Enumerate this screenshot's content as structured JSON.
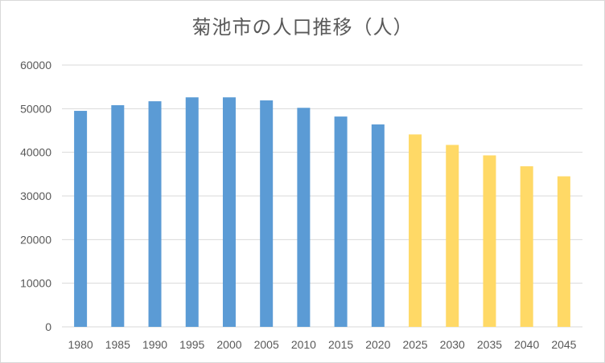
{
  "chart_data": {
    "type": "bar",
    "title": "菊池市の人口推移（人）",
    "xlabel": "",
    "ylabel": "",
    "ylim": [
      0,
      60000
    ],
    "yticks": [
      0,
      10000,
      20000,
      30000,
      40000,
      50000,
      60000
    ],
    "grid": true,
    "legend": "none",
    "categories": [
      "1980",
      "1985",
      "1990",
      "1995",
      "2000",
      "2005",
      "2010",
      "2015",
      "2020",
      "2025",
      "2030",
      "2035",
      "2040",
      "2045"
    ],
    "values": [
      49500,
      50800,
      51700,
      52600,
      52600,
      51900,
      50200,
      48200,
      46400,
      44100,
      41700,
      39300,
      36800,
      34500
    ],
    "colors": {
      "actual": "#5b9bd5",
      "projected": "#ffd966",
      "grid": "#d9d9d9",
      "text": "#595959"
    },
    "projected_from_index": 9
  }
}
